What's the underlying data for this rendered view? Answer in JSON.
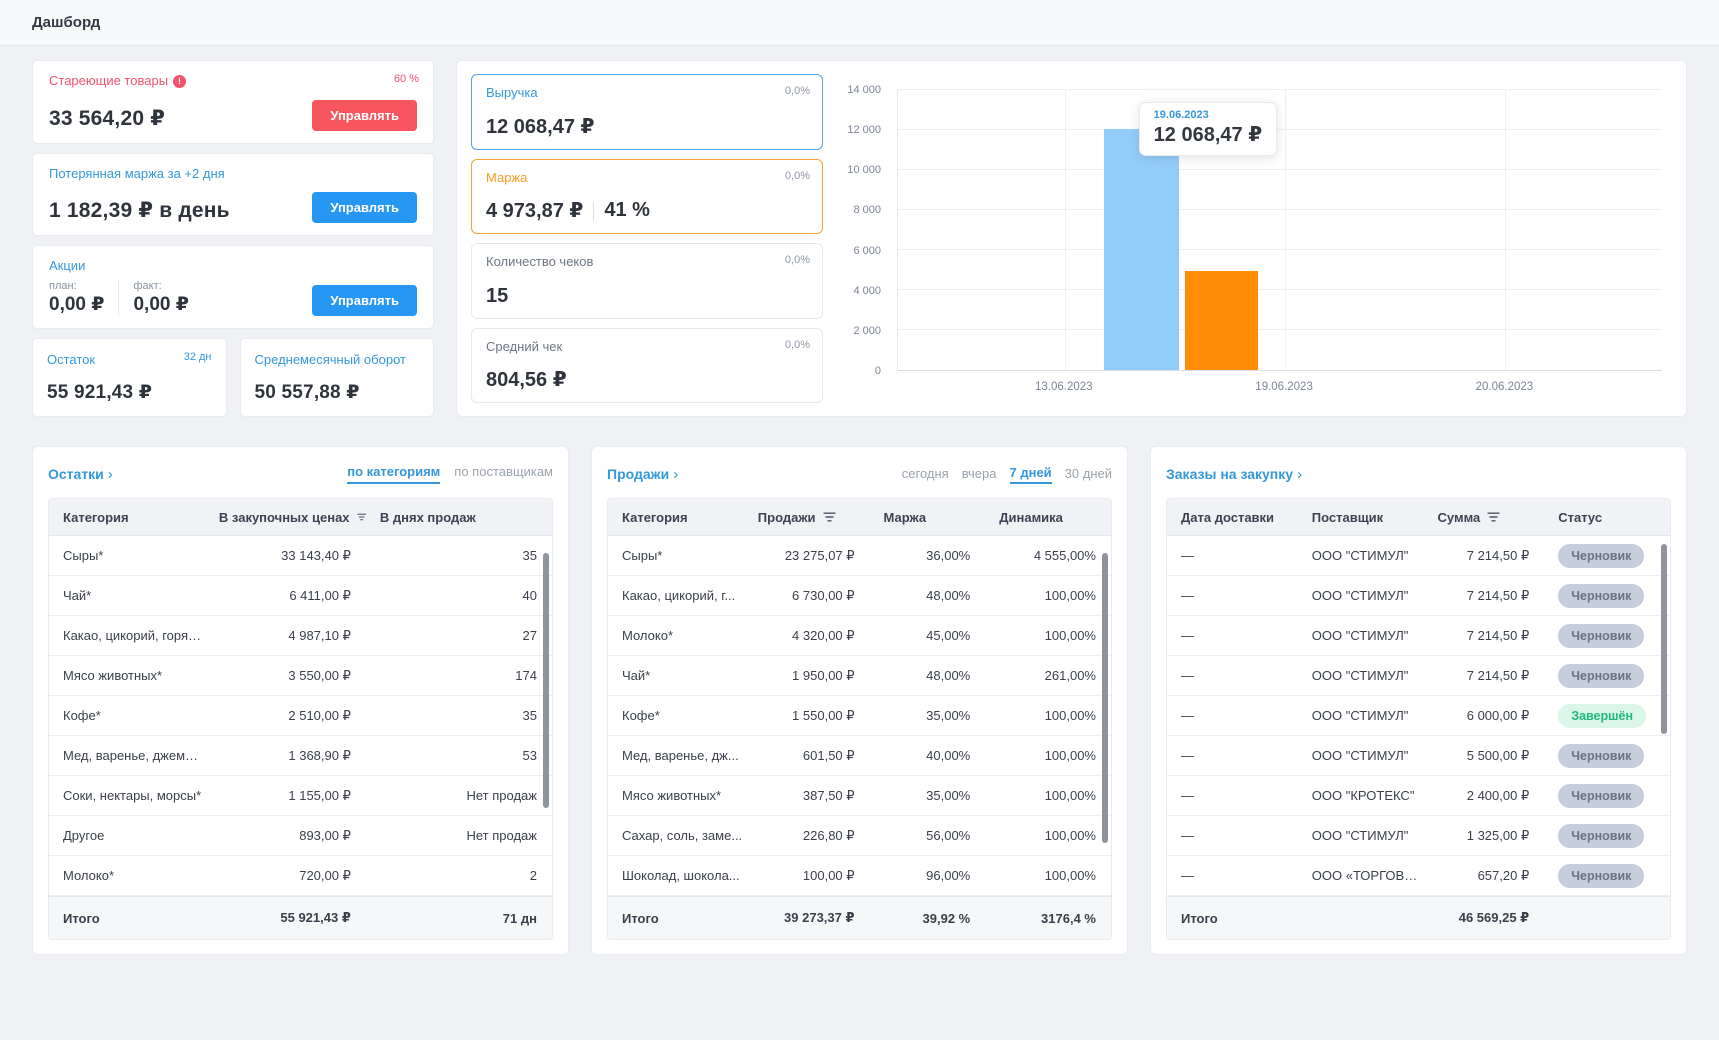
{
  "app": {
    "title": "Дашборд"
  },
  "colors": {
    "accent_blue": "#3498db",
    "button_blue": "#2697f3",
    "accent_red": "#f4516c",
    "button_red": "#f7565f",
    "accent_orange": "#f89c1c",
    "bar_blue": "#92cdf9",
    "bar_orange": "#ff8b07",
    "badge_draft_bg": "#c6cedb",
    "badge_done_bg": "#d9f6e9",
    "badge_done_text": "#21b97b"
  },
  "cards": {
    "aging": {
      "title": "Стареющие товары",
      "badge": "60 %",
      "value": "33 564,20 ₽",
      "action": "Управлять"
    },
    "lost_margin": {
      "title": "Потерянная маржа за +2 дня",
      "value": "1 182,39 ₽ в день",
      "action": "Управлять"
    },
    "promos": {
      "title": "Акции",
      "plan_label": "план:",
      "plan_value": "0,00 ₽",
      "fact_label": "факт:",
      "fact_value": "0,00 ₽",
      "action": "Управлять"
    },
    "stock": {
      "title": "Остаток",
      "badge": "32 дн",
      "value": "55 921,43 ₽"
    },
    "turnover": {
      "title": "Среднемесячный оборот",
      "value": "50 557,88 ₽"
    }
  },
  "metrics": [
    {
      "title": "Выручка",
      "value": "12 068,47 ₽",
      "delta": "0,0%"
    },
    {
      "title": "Маржа",
      "value": "4 973,87 ₽",
      "extra": "41 %",
      "delta": "0,0%"
    },
    {
      "title": "Количество чеков",
      "value": "15",
      "delta": "0,0%"
    },
    {
      "title": "Средний чек",
      "value": "804,56 ₽",
      "delta": "0,0%"
    }
  ],
  "chart_data": {
    "type": "bar",
    "categories": [
      "13.06.2023",
      "19.06.2023",
      "20.06.2023"
    ],
    "series": [
      {
        "name": "Выручка",
        "color": "#92cdf9",
        "values": [
          0,
          12068.47,
          0
        ]
      },
      {
        "name": "Маржа",
        "color": "#ff8b07",
        "values": [
          0,
          4973.87,
          0
        ]
      }
    ],
    "ylim": [
      0,
      14000
    ],
    "yticks": [
      {
        "label": "14 000",
        "value": 14000
      },
      {
        "label": "12 000",
        "value": 12000
      },
      {
        "label": "10 000",
        "value": 10000
      },
      {
        "label": "8 000",
        "value": 8000
      },
      {
        "label": "6 000",
        "value": 6000
      },
      {
        "label": "4 000",
        "value": 4000
      },
      {
        "label": "2 000",
        "value": 2000
      },
      {
        "label": "0",
        "value": 0
      }
    ],
    "grid": true,
    "tooltip": {
      "date": "19.06.2023",
      "value": "12 068,47 ₽"
    },
    "layout": {
      "x_pct": [
        21.8,
        50.6,
        79.4
      ],
      "bars": [
        {
          "series": 0,
          "cat": 1,
          "left_pct": 27.0,
          "width_pct": 9.8
        },
        {
          "series": 1,
          "cat": 1,
          "left_pct": 37.6,
          "width_pct": 9.5
        }
      ]
    }
  },
  "tables": {
    "stock": {
      "title": "Остатки",
      "arrow": "›",
      "tabs": [
        {
          "label": "по категориям",
          "active": true
        },
        {
          "label": "по поставщикам",
          "active": false
        }
      ],
      "columns": [
        {
          "label": "Категория",
          "filter": false
        },
        {
          "label": "В закупочных ценах",
          "filter": true
        },
        {
          "label": "В днях продаж",
          "filter": false
        }
      ],
      "rows": [
        [
          "Сыры*",
          "33 143,40 ₽",
          "35"
        ],
        [
          "Чай*",
          "6 411,00 ₽",
          "40"
        ],
        [
          "Какао, цикорий, горячий ...",
          "4 987,10 ₽",
          "27"
        ],
        [
          "Мясо животных*",
          "3 550,00 ₽",
          "174"
        ],
        [
          "Кофе*",
          "2 510,00 ₽",
          "35"
        ],
        [
          "Мед, варенье, джемы, сир...",
          "1 368,90 ₽",
          "53"
        ],
        [
          "Соки, нектары, морсы*",
          "1 155,00 ₽",
          "Нет продаж"
        ],
        [
          "Другое",
          "893,00 ₽",
          "Нет продаж"
        ],
        [
          "Молоко*",
          "720,00 ₽",
          "2"
        ]
      ],
      "footer": [
        "Итого",
        "55 921,43 ₽",
        "71 дн"
      ]
    },
    "sales": {
      "title": "Продажи",
      "arrow": "›",
      "filters": [
        {
          "label": "сегодня",
          "active": false
        },
        {
          "label": "вчера",
          "active": false
        },
        {
          "label": "7 дней",
          "active": true
        },
        {
          "label": "30 дней",
          "active": false
        }
      ],
      "columns": [
        {
          "label": "Категория",
          "filter": false
        },
        {
          "label": "Продажи",
          "filter": true
        },
        {
          "label": "Маржа",
          "filter": false
        },
        {
          "label": "Динамика",
          "filter": false
        }
      ],
      "rows": [
        [
          "Сыры*",
          "23 275,07 ₽",
          "36,00%",
          "4 555,00%"
        ],
        [
          "Какао, цикорий, г...",
          "6 730,00 ₽",
          "48,00%",
          "100,00%"
        ],
        [
          "Молоко*",
          "4 320,00 ₽",
          "45,00%",
          "100,00%"
        ],
        [
          "Чай*",
          "1 950,00 ₽",
          "48,00%",
          "261,00%"
        ],
        [
          "Кофе*",
          "1 550,00 ₽",
          "35,00%",
          "100,00%"
        ],
        [
          "Мед, варенье, дж...",
          "601,50 ₽",
          "40,00%",
          "100,00%"
        ],
        [
          "Мясо животных*",
          "387,50 ₽",
          "35,00%",
          "100,00%"
        ],
        [
          "Сахар, соль, заме...",
          "226,80 ₽",
          "56,00%",
          "100,00%"
        ],
        [
          "Шоколад, шокола...",
          "100,00 ₽",
          "96,00%",
          "100,00%"
        ]
      ],
      "footer": [
        "Итого",
        "39 273,37 ₽",
        "39,92 %",
        "3176,4 %"
      ]
    },
    "purchase": {
      "title": "Заказы на закупку",
      "arrow": "›",
      "status_col": 3,
      "done_status": "Завершён",
      "columns": [
        {
          "label": "Дата доставки",
          "filter": false
        },
        {
          "label": "Поставщик",
          "filter": false
        },
        {
          "label": "Сумма",
          "filter": true
        },
        {
          "label": "Статус",
          "filter": false
        }
      ],
      "rows": [
        [
          "—",
          "ООО \"СТИМУЛ\"",
          "7 214,50 ₽",
          "Черновик"
        ],
        [
          "—",
          "ООО \"СТИМУЛ\"",
          "7 214,50 ₽",
          "Черновик"
        ],
        [
          "—",
          "ООО \"СТИМУЛ\"",
          "7 214,50 ₽",
          "Черновик"
        ],
        [
          "—",
          "ООО \"СТИМУЛ\"",
          "7 214,50 ₽",
          "Черновик"
        ],
        [
          "—",
          "ООО \"СТИМУЛ\"",
          "6 000,00 ₽",
          "Завершён"
        ],
        [
          "—",
          "ООО \"СТИМУЛ\"",
          "5 500,00 ₽",
          "Черновик"
        ],
        [
          "—",
          "ООО \"КРОТЕКС\"",
          "2 400,00 ₽",
          "Черновик"
        ],
        [
          "—",
          "ООО \"СТИМУЛ\"",
          "1 325,00 ₽",
          "Черновик"
        ],
        [
          "—",
          "ООО «ТОРГОВЫЙ ...",
          "657,20 ₽",
          "Черновик"
        ]
      ],
      "footer": [
        "Итого",
        "",
        "46 569,25 ₽",
        ""
      ]
    }
  }
}
